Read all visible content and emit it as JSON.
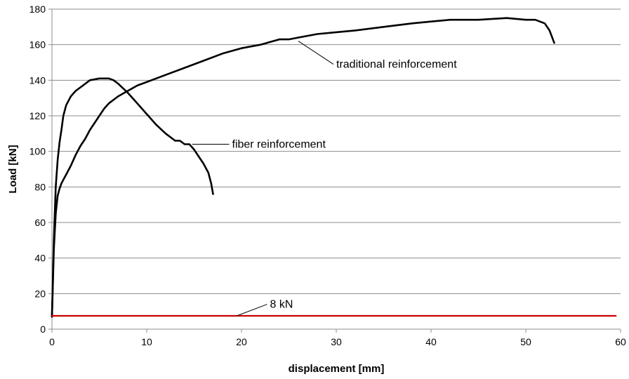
{
  "chart_data": {
    "type": "line",
    "xlabel": "displacement [mm]",
    "ylabel": "Load [kN]",
    "xlim": [
      0,
      60
    ],
    "ylim": [
      0,
      180
    ],
    "x_ticks": [
      0,
      10,
      20,
      30,
      40,
      50,
      60
    ],
    "y_ticks": [
      0,
      20,
      40,
      60,
      80,
      100,
      120,
      140,
      160,
      180
    ],
    "grid": "horizontal",
    "series": [
      {
        "name": "traditional reinforcement",
        "color": "#000000",
        "x": [
          0,
          0.2,
          0.4,
          0.6,
          0.8,
          1.0,
          1.2,
          1.5,
          2.0,
          2.5,
          3.0,
          3.5,
          4.0,
          4.5,
          5.0,
          5.5,
          6.0,
          7.0,
          8.0,
          9.0,
          10,
          12,
          14,
          16,
          18,
          20,
          22,
          24,
          25,
          26,
          28,
          30,
          32,
          35,
          38,
          40,
          42,
          45,
          48,
          50,
          51,
          52,
          52.5,
          53
        ],
        "y": [
          7,
          45,
          65,
          75,
          79,
          82,
          84,
          87,
          92,
          98,
          103,
          107,
          112,
          116,
          120,
          124,
          127,
          131,
          134,
          137,
          139,
          143,
          147,
          151,
          155,
          158,
          160,
          163,
          163,
          164,
          166,
          167,
          168,
          170,
          172,
          173,
          174,
          174,
          175,
          174,
          174,
          172,
          168,
          161
        ]
      },
      {
        "name": "fiber reinforcement",
        "color": "#000000",
        "x": [
          0,
          0.2,
          0.4,
          0.6,
          0.8,
          1.0,
          1.2,
          1.5,
          2.0,
          2.5,
          3.0,
          3.5,
          4.0,
          5.0,
          6.0,
          6.5,
          7.0,
          8.0,
          9.0,
          10,
          11,
          12,
          13,
          13.5,
          14,
          14.5,
          15,
          16,
          16.5,
          16.8,
          17.0
        ],
        "y": [
          7,
          50,
          80,
          95,
          105,
          112,
          120,
          126,
          131,
          134,
          136,
          138,
          140,
          141,
          141,
          140,
          138,
          133,
          127,
          121,
          115,
          110,
          106,
          106,
          104,
          104,
          101,
          93,
          88,
          82,
          76
        ]
      },
      {
        "name": "8 kN",
        "color": "#cc0000",
        "x": [
          0,
          59.5
        ],
        "y": [
          7.5,
          7.5
        ]
      }
    ],
    "annotations": [
      {
        "text": "traditional reinforcement",
        "target_x": 26,
        "target_y": 162,
        "label_x": 30,
        "label_y": 149
      },
      {
        "text": "fiber reinforcement",
        "target_x": 14.8,
        "target_y": 104,
        "label_x": 19,
        "label_y": 104
      },
      {
        "text": "8 kN",
        "target_x": 19.5,
        "target_y": 7.5,
        "label_x": 23,
        "label_y": 14
      }
    ]
  }
}
